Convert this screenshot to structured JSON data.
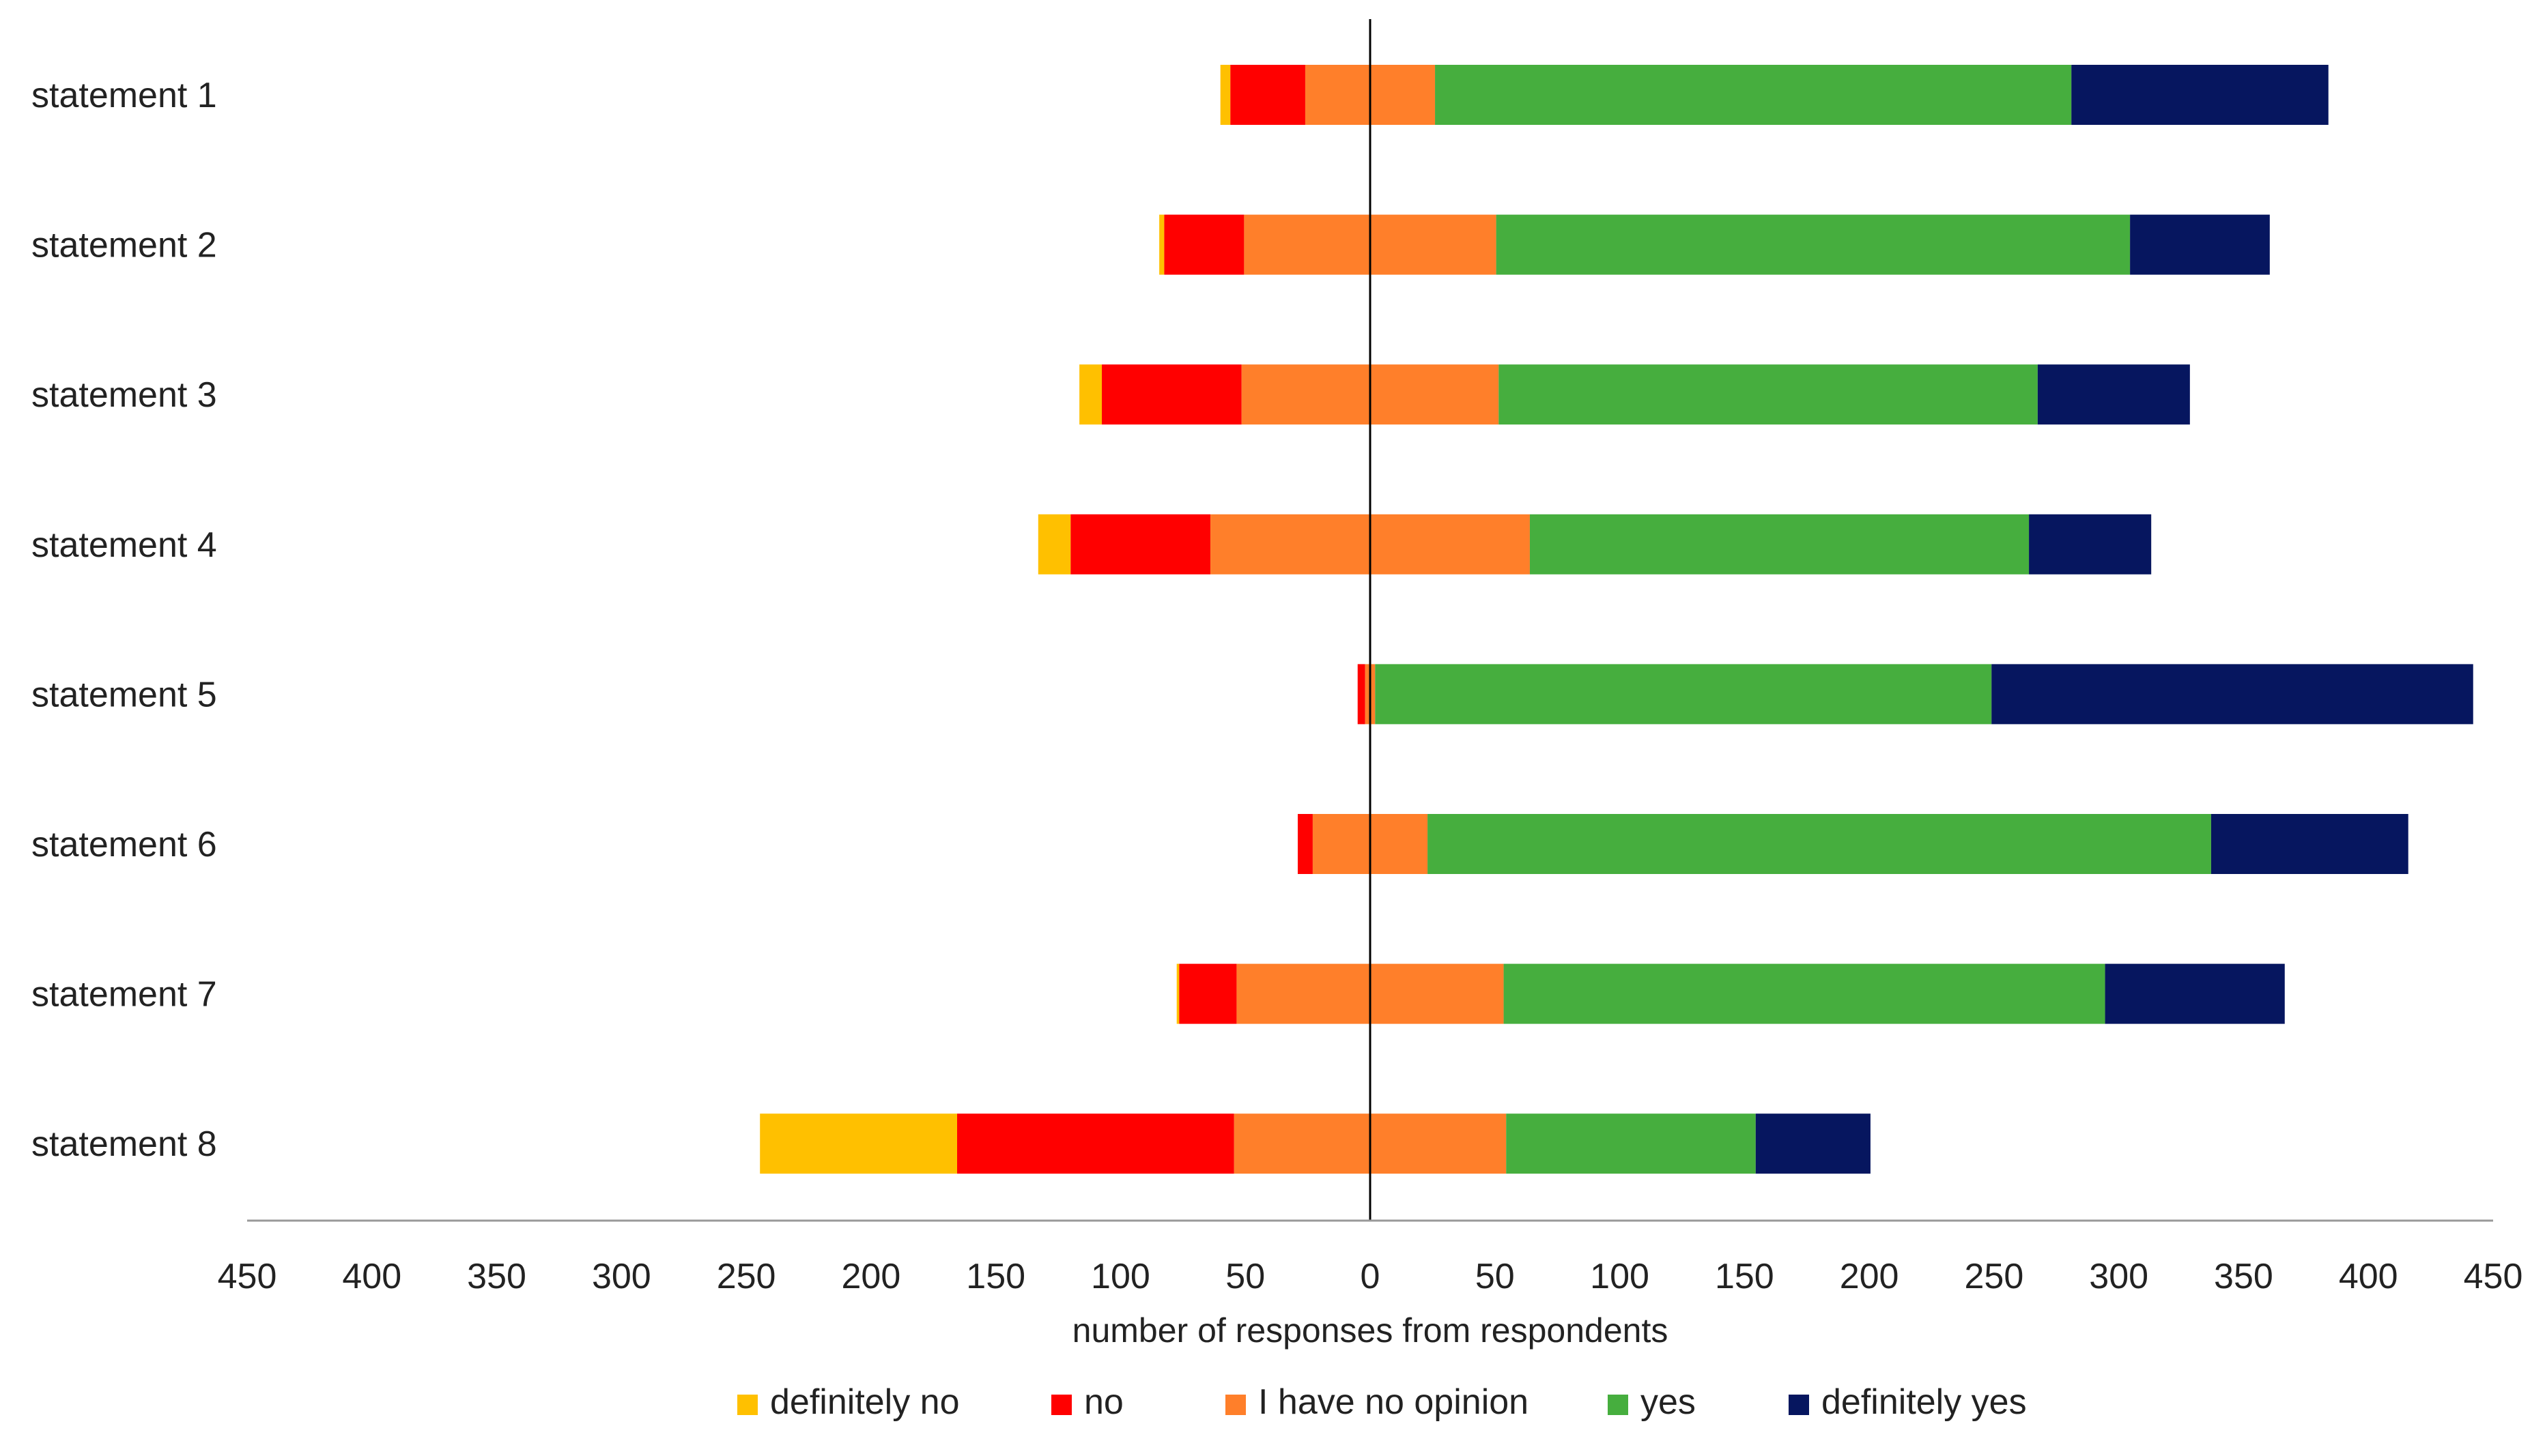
{
  "chart_data": {
    "type": "bar",
    "orientation": "horizontal",
    "stacked": "diverging",
    "title": "",
    "xlabel": "number of responses from respondents",
    "ylabel": "",
    "xlim": [
      -450,
      450
    ],
    "tick_values": [
      -450,
      -400,
      -350,
      -300,
      -250,
      -200,
      -150,
      -100,
      -50,
      0,
      50,
      100,
      150,
      200,
      250,
      300,
      350,
      400,
      450
    ],
    "tick_labels": [
      "450",
      "400",
      "350",
      "300",
      "250",
      "200",
      "150",
      "100",
      "50",
      "0",
      "50",
      "100",
      "150",
      "200",
      "250",
      "300",
      "350",
      "400",
      "450"
    ],
    "grid": false,
    "legend_position": "bottom",
    "categories": [
      "statement 1",
      "statement 2",
      "statement 3",
      "statement 4",
      "statement 5",
      "statement 6",
      "statement 7",
      "statement 8"
    ],
    "series": [
      {
        "name": "definitely no",
        "color": "#FFC000",
        "values": [
          4,
          2,
          9,
          13,
          0,
          0,
          1,
          79
        ]
      },
      {
        "name": "no",
        "color": "#FF0000",
        "values": [
          30,
          32,
          56,
          56,
          3,
          6,
          23,
          111
        ]
      },
      {
        "name": "I have no opinion",
        "color": "#FF7F2A",
        "values": [
          52,
          101,
          103,
          128,
          4,
          46,
          107,
          109
        ]
      },
      {
        "name": "yes",
        "color": "#46AE3E",
        "values": [
          255,
          254,
          216,
          200,
          247,
          314,
          241,
          100
        ]
      },
      {
        "name": "definitely yes",
        "color": "#06165F",
        "values": [
          103,
          56,
          61,
          49,
          193,
          79,
          72,
          46
        ]
      }
    ]
  }
}
